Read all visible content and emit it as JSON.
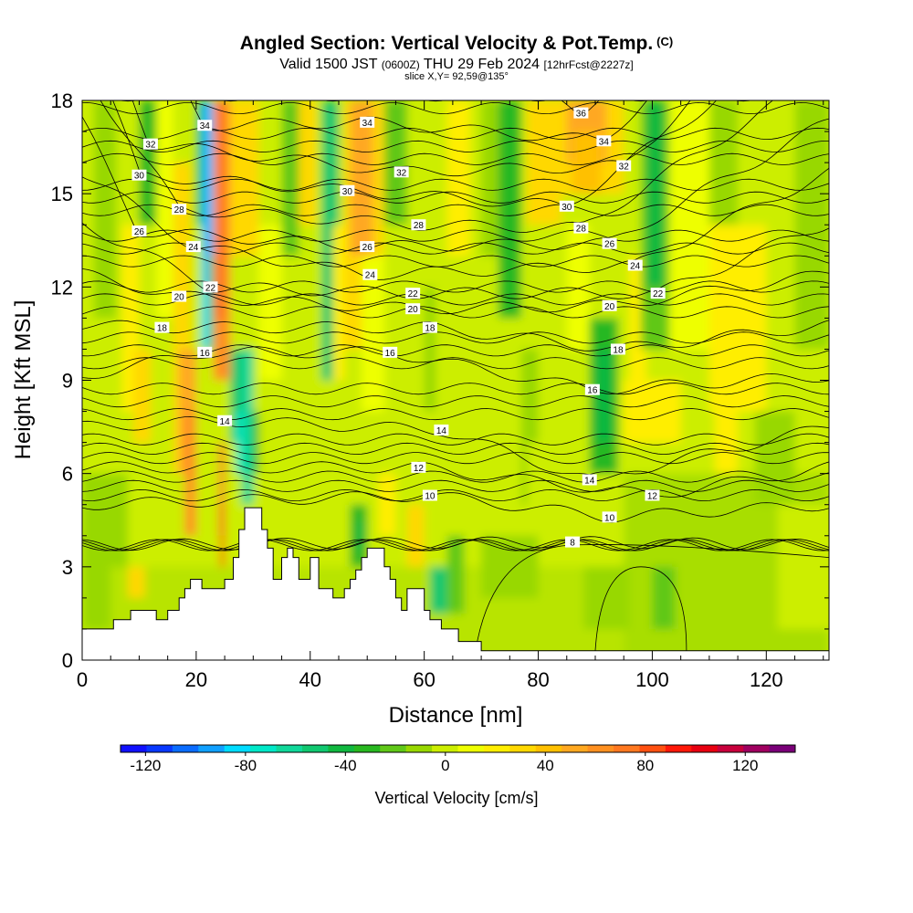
{
  "header": {
    "title": "Angled Section: Vertical Velocity & Pot.Temp.",
    "title_unit": "(C)",
    "valid_prefix": "Valid 1500 JST",
    "valid_utc": "(0600Z)",
    "valid_date": "THU 29 Feb 2024",
    "forecast": "[12hrFcst@2227z]",
    "slice": "slice X,Y= 92,59@135°"
  },
  "chart_data": {
    "type": "heatmap",
    "xlabel": "Distance [nm]",
    "ylabel": "Height [Kft MSL]",
    "xlim": [
      0,
      131
    ],
    "ylim": [
      0,
      18
    ],
    "x_ticks": [
      0,
      20,
      40,
      60,
      80,
      100,
      120
    ],
    "y_ticks": [
      0,
      3,
      6,
      9,
      12,
      15,
      18
    ],
    "colorbar": {
      "label": "Vertical Velocity [cm/s]",
      "range": [
        -130,
        140
      ],
      "tick_values": [
        -120,
        -80,
        -40,
        0,
        40,
        80,
        120
      ],
      "tick_labels": [
        "-120",
        "-80",
        "-40",
        "0",
        "40",
        "80",
        "120"
      ],
      "colors": [
        "#1010ff",
        "#0838ff",
        "#0a6cff",
        "#10a0ff",
        "#00dcff",
        "#00e8c8",
        "#10d89a",
        "#10c870",
        "#10b840",
        "#28b820",
        "#60c818",
        "#98d800",
        "#ccee00",
        "#eeff00",
        "#ffee00",
        "#ffd800",
        "#ffc000",
        "#ffa820",
        "#ff9020",
        "#ff7820",
        "#ff5010",
        "#ff1808",
        "#e80010",
        "#c8003c",
        "#a00060",
        "#7a0078"
      ]
    },
    "theta_contours": {
      "values": [
        8,
        10,
        12,
        14,
        16,
        18,
        20,
        22,
        24,
        26,
        28,
        30,
        32,
        34,
        36
      ],
      "labeled": [
        {
          "value": 8,
          "x": 86,
          "y": 3.8
        },
        {
          "value": 10,
          "x": 61,
          "y": 5.3
        },
        {
          "value": 10,
          "x": 92.5,
          "y": 4.6
        },
        {
          "value": 12,
          "x": 59,
          "y": 6.2
        },
        {
          "value": 12,
          "x": 100,
          "y": 5.3
        },
        {
          "value": 14,
          "x": 25,
          "y": 7.7
        },
        {
          "value": 14,
          "x": 63,
          "y": 7.4
        },
        {
          "value": 14,
          "x": 89,
          "y": 5.8
        },
        {
          "value": 16,
          "x": 21.5,
          "y": 9.9
        },
        {
          "value": 16,
          "x": 54,
          "y": 9.9
        },
        {
          "value": 16,
          "x": 89.5,
          "y": 8.7
        },
        {
          "value": 18,
          "x": 14,
          "y": 10.7
        },
        {
          "value": 18,
          "x": 61,
          "y": 10.7
        },
        {
          "value": 18,
          "x": 94,
          "y": 10.0
        },
        {
          "value": 20,
          "x": 17,
          "y": 11.7
        },
        {
          "value": 20,
          "x": 58,
          "y": 11.3
        },
        {
          "value": 20,
          "x": 92.5,
          "y": 11.4
        },
        {
          "value": 22,
          "x": 22.5,
          "y": 12.0
        },
        {
          "value": 22,
          "x": 58,
          "y": 11.8
        },
        {
          "value": 22,
          "x": 101,
          "y": 11.8
        },
        {
          "value": 24,
          "x": 19.5,
          "y": 13.3
        },
        {
          "value": 24,
          "x": 50.5,
          "y": 12.4
        },
        {
          "value": 24,
          "x": 97,
          "y": 12.7
        },
        {
          "value": 26,
          "x": 10,
          "y": 13.8
        },
        {
          "value": 26,
          "x": 50,
          "y": 13.3
        },
        {
          "value": 26,
          "x": 92.5,
          "y": 13.4
        },
        {
          "value": 28,
          "x": 17,
          "y": 14.5
        },
        {
          "value": 28,
          "x": 59,
          "y": 14.0
        },
        {
          "value": 28,
          "x": 87.5,
          "y": 13.9
        },
        {
          "value": 30,
          "x": 10,
          "y": 15.6
        },
        {
          "value": 30,
          "x": 46.5,
          "y": 15.1
        },
        {
          "value": 30,
          "x": 85,
          "y": 14.6
        },
        {
          "value": 32,
          "x": 12,
          "y": 16.6
        },
        {
          "value": 32,
          "x": 56,
          "y": 15.7
        },
        {
          "value": 32,
          "x": 95,
          "y": 15.9
        },
        {
          "value": 34,
          "x": 21.5,
          "y": 17.2
        },
        {
          "value": 34,
          "x": 50,
          "y": 17.3
        },
        {
          "value": 34,
          "x": 91.5,
          "y": 16.7
        },
        {
          "value": 36,
          "x": 87.5,
          "y": 17.6
        }
      ]
    },
    "terrain": [
      [
        0,
        1
      ],
      [
        5.5,
        1
      ],
      [
        5.5,
        1.3
      ],
      [
        8.5,
        1.3
      ],
      [
        8.5,
        1.6
      ],
      [
        13,
        1.6
      ],
      [
        13,
        1.3
      ],
      [
        15,
        1.3
      ],
      [
        15,
        1.6
      ],
      [
        17,
        1.6
      ],
      [
        17,
        2
      ],
      [
        18,
        2
      ],
      [
        18,
        2.3
      ],
      [
        19,
        2.3
      ],
      [
        19,
        2.6
      ],
      [
        21,
        2.6
      ],
      [
        21,
        2.3
      ],
      [
        25,
        2.3
      ],
      [
        25,
        2.6
      ],
      [
        26.5,
        2.6
      ],
      [
        26.5,
        3.3
      ],
      [
        27.5,
        3.3
      ],
      [
        27.5,
        4.2
      ],
      [
        28.5,
        4.2
      ],
      [
        28.5,
        4.9
      ],
      [
        31.5,
        4.9
      ],
      [
        31.5,
        4.2
      ],
      [
        32.5,
        4.2
      ],
      [
        32.5,
        3.6
      ],
      [
        33.5,
        3.6
      ],
      [
        33.5,
        2.6
      ],
      [
        35,
        2.6
      ],
      [
        35,
        3.3
      ],
      [
        36,
        3.3
      ],
      [
        36,
        3.6
      ],
      [
        37,
        3.6
      ],
      [
        37,
        3.3
      ],
      [
        38,
        3.3
      ],
      [
        38,
        2.6
      ],
      [
        40,
        2.6
      ],
      [
        40,
        3.3
      ],
      [
        41.5,
        3.3
      ],
      [
        41.5,
        2.3
      ],
      [
        44,
        2.3
      ],
      [
        44,
        2.0
      ],
      [
        46,
        2.0
      ],
      [
        46,
        2.3
      ],
      [
        47,
        2.3
      ],
      [
        47,
        2.6
      ],
      [
        48,
        2.6
      ],
      [
        48,
        2.9
      ],
      [
        49,
        2.9
      ],
      [
        49,
        3.3
      ],
      [
        50,
        3.3
      ],
      [
        50,
        3.6
      ],
      [
        53,
        3.6
      ],
      [
        53,
        3.0
      ],
      [
        54,
        3.0
      ],
      [
        54,
        2.6
      ],
      [
        55,
        2.6
      ],
      [
        55,
        2.0
      ],
      [
        56,
        2.0
      ],
      [
        56,
        1.6
      ],
      [
        57,
        1.6
      ],
      [
        57,
        2.3
      ],
      [
        60,
        2.3
      ],
      [
        60,
        1.6
      ],
      [
        61,
        1.6
      ],
      [
        61,
        1.3
      ],
      [
        63,
        1.3
      ],
      [
        63,
        1.0
      ],
      [
        66,
        1.0
      ],
      [
        66,
        0.6
      ],
      [
        70,
        0.6
      ],
      [
        70,
        0.3
      ],
      [
        131,
        0.3
      ],
      [
        131,
        0
      ],
      [
        0,
        0
      ]
    ]
  }
}
